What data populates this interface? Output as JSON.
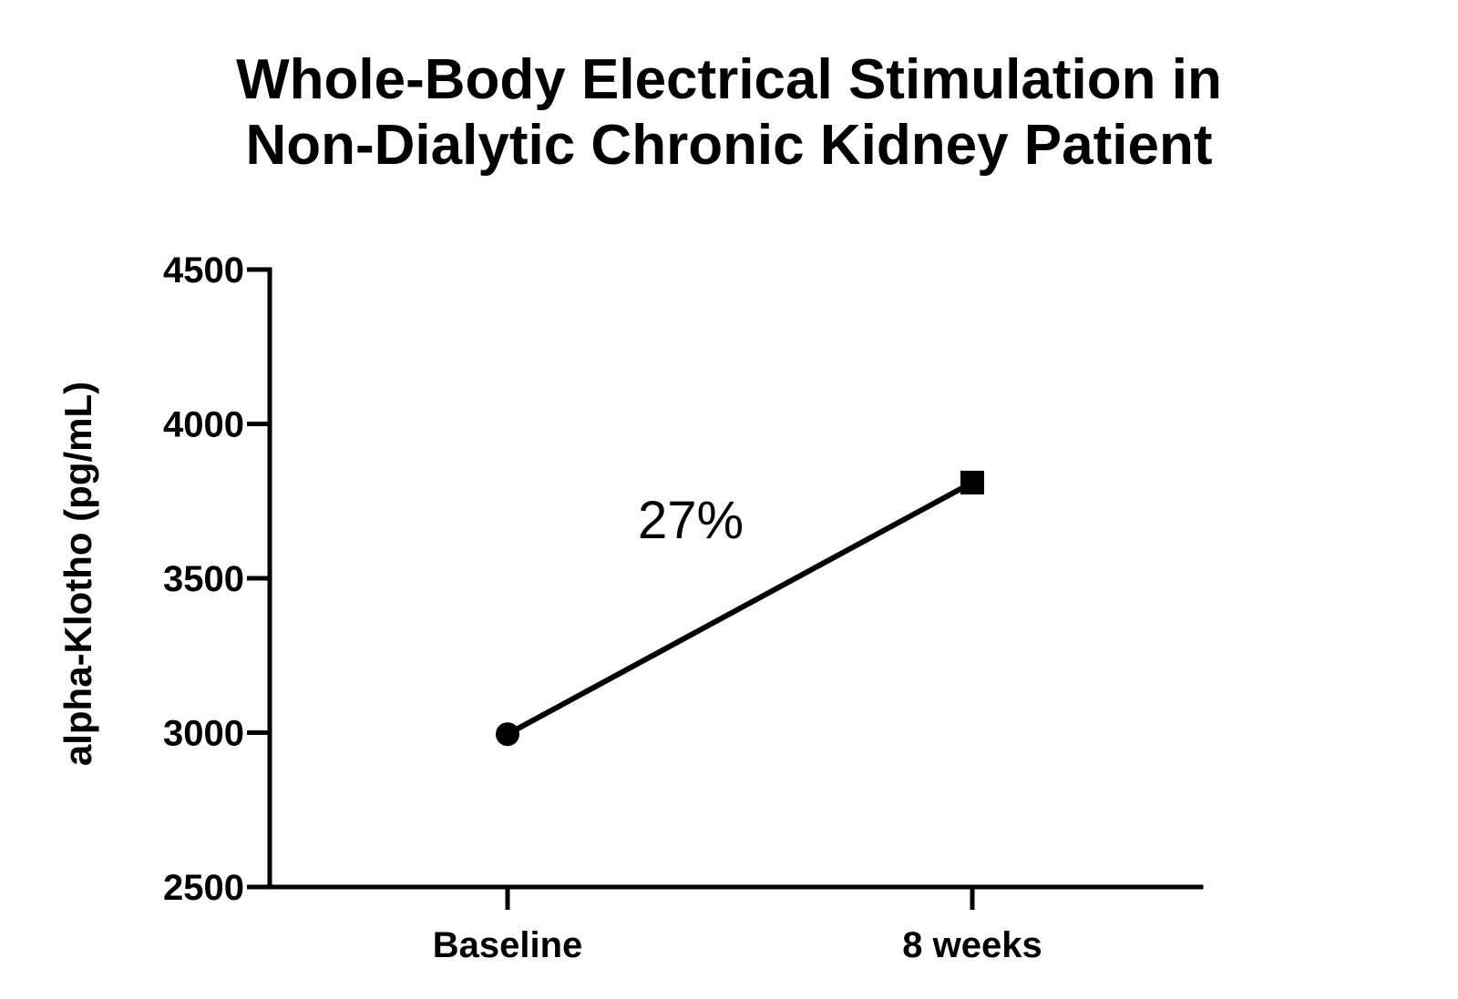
{
  "chart_data": {
    "type": "line",
    "title_lines": [
      "Whole-Body Electrical Stimulation in",
      "Non-Dialytic Chronic Kidney Patient"
    ],
    "xlabel": "",
    "ylabel": "alpha-Klotho (pg/mL)",
    "categories": [
      "Baseline",
      "8 weeks"
    ],
    "series": [
      {
        "values": [
          2995,
          3810
        ],
        "markers": [
          "circle",
          "square"
        ],
        "color": "#000000"
      }
    ],
    "ylim": [
      2500,
      4500
    ],
    "yticks": [
      2500,
      3000,
      3500,
      4000,
      4500
    ],
    "ytick_labels": [
      "2500",
      "3000",
      "3500",
      "4000",
      "4500"
    ],
    "annotations": [
      {
        "text": "27%"
      }
    ],
    "grid": false,
    "legend": "none"
  }
}
